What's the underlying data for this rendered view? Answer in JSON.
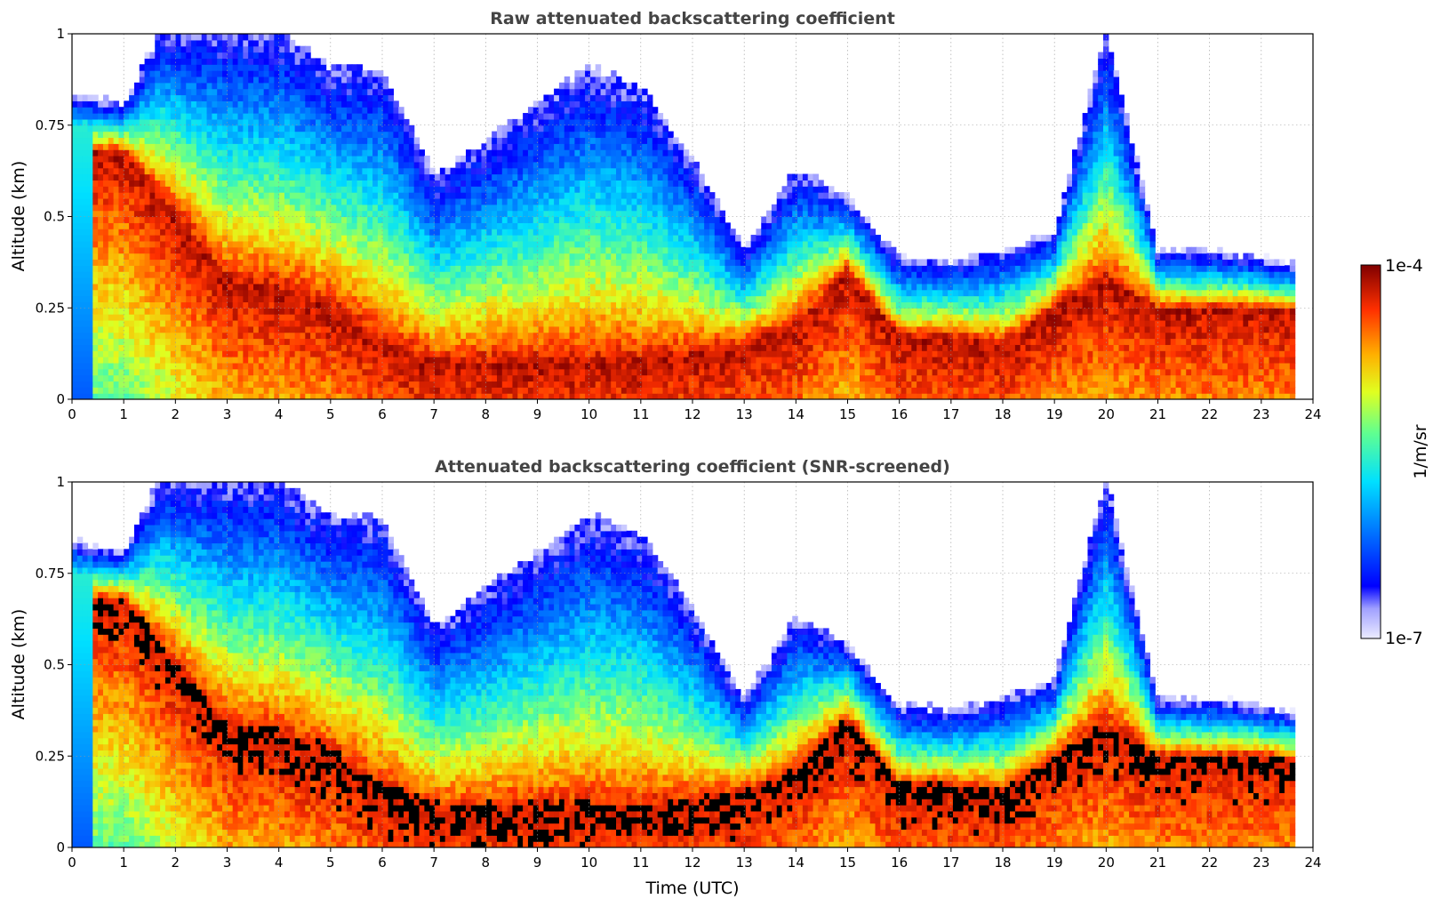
{
  "chart_data": [
    {
      "type": "heatmap",
      "title": "Raw attenuated backscattering coefficient",
      "xlabel": "",
      "ylabel": "Altitude (km)",
      "xlim": [
        0,
        24
      ],
      "ylim": [
        0,
        1
      ],
      "x_ticks": [
        "0",
        "1",
        "2",
        "3",
        "4",
        "5",
        "6",
        "7",
        "8",
        "9",
        "10",
        "11",
        "12",
        "13",
        "14",
        "15",
        "16",
        "17",
        "18",
        "19",
        "20",
        "21",
        "22",
        "23",
        "24"
      ],
      "y_ticks": [
        "0",
        "0.25",
        "0.5",
        "0.75",
        "1"
      ],
      "grid": true,
      "data_end_time": 23.65,
      "colormap": "jet",
      "ridge": [
        {
          "t": 0.0,
          "top": 0.83,
          "mid": 0.68
        },
        {
          "t": 1.0,
          "top": 0.8,
          "mid": 0.68
        },
        {
          "t": 1.7,
          "top": 1.0,
          "mid": 0.55
        },
        {
          "t": 3.0,
          "top": 1.0,
          "mid": 0.32
        },
        {
          "t": 4.0,
          "top": 1.0,
          "mid": 0.3
        },
        {
          "t": 5.0,
          "top": 0.9,
          "mid": 0.25
        },
        {
          "t": 6.0,
          "top": 0.9,
          "mid": 0.15
        },
        {
          "t": 7.0,
          "top": 0.6,
          "mid": 0.1
        },
        {
          "t": 8.0,
          "top": 0.7,
          "mid": 0.1
        },
        {
          "t": 9.0,
          "top": 0.8,
          "mid": 0.1
        },
        {
          "t": 10.0,
          "top": 0.9,
          "mid": 0.1
        },
        {
          "t": 11.0,
          "top": 0.85,
          "mid": 0.1
        },
        {
          "t": 12.0,
          "top": 0.65,
          "mid": 0.12
        },
        {
          "t": 13.0,
          "top": 0.4,
          "mid": 0.15
        },
        {
          "t": 14.0,
          "top": 0.62,
          "mid": 0.2
        },
        {
          "t": 15.0,
          "top": 0.55,
          "mid": 0.35
        },
        {
          "t": 16.0,
          "top": 0.38,
          "mid": 0.17
        },
        {
          "t": 17.0,
          "top": 0.37,
          "mid": 0.17
        },
        {
          "t": 18.0,
          "top": 0.4,
          "mid": 0.15
        },
        {
          "t": 19.0,
          "top": 0.45,
          "mid": 0.25
        },
        {
          "t": 20.0,
          "top": 1.0,
          "mid": 0.32
        },
        {
          "t": 21.0,
          "top": 0.4,
          "mid": 0.25
        },
        {
          "t": 22.0,
          "top": 0.4,
          "mid": 0.25
        },
        {
          "t": 23.0,
          "top": 0.38,
          "mid": 0.25
        },
        {
          "t": 23.65,
          "top": 0.36,
          "mid": 0.24
        }
      ]
    },
    {
      "type": "heatmap",
      "title": "Attenuated backscattering coefficient (SNR-screened)",
      "xlabel": "Time (UTC)",
      "ylabel": "Altitude (km)",
      "xlim": [
        0,
        24
      ],
      "ylim": [
        0,
        1
      ],
      "x_ticks": [
        "0",
        "1",
        "2",
        "3",
        "4",
        "5",
        "6",
        "7",
        "8",
        "9",
        "10",
        "11",
        "12",
        "13",
        "14",
        "15",
        "16",
        "17",
        "18",
        "19",
        "20",
        "21",
        "22",
        "23",
        "24"
      ],
      "y_ticks": [
        "0",
        "0.25",
        "0.5",
        "0.75",
        "1"
      ],
      "grid": true,
      "data_end_time": 23.65,
      "colormap": "jet",
      "saturated_color": "#000000"
    }
  ],
  "colorbar": {
    "label": "1/m/sr",
    "max_label": "1e-4",
    "min_label": "1e-7",
    "scale": "log",
    "range": [
      1e-07,
      0.0001
    ]
  }
}
